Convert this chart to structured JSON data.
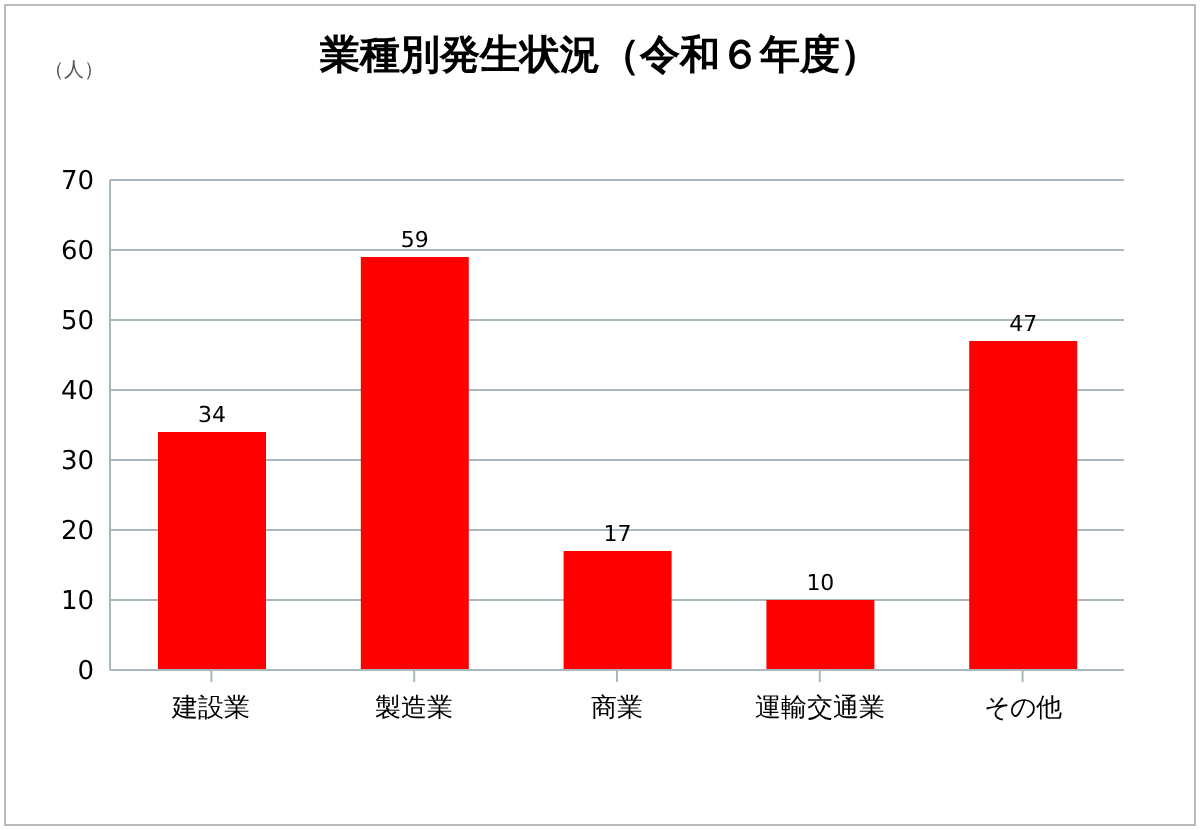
{
  "chart_data": {
    "type": "bar",
    "title": "業種別発生状況（令和６年度）",
    "ylabel": "（人）",
    "categories": [
      "建設業",
      "製造業",
      "商業",
      "運輸交通業",
      "その他"
    ],
    "values": [
      34,
      59,
      17,
      10,
      47
    ],
    "color": "#ff0000",
    "ylim": [
      0,
      70
    ],
    "yticks": [
      0,
      10,
      20,
      30,
      40,
      50,
      60,
      70
    ],
    "grid": "y",
    "data_labels": true
  }
}
